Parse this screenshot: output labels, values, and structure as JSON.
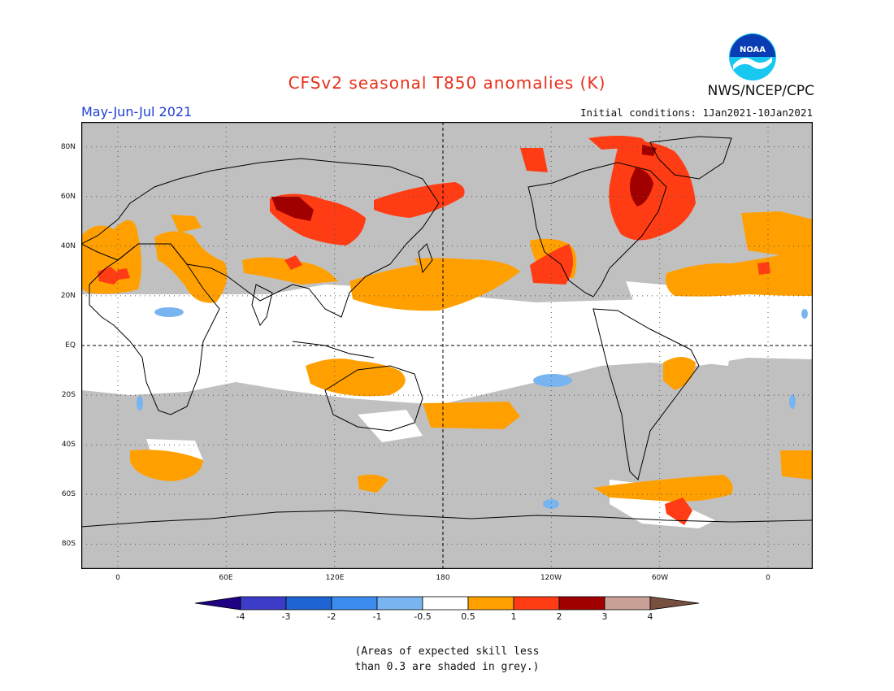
{
  "header": {
    "title": "CFSv2 seasonal T850 anomalies (K)",
    "period": "May-Jun-Jul 2021",
    "initial_conditions": "Initial conditions: 1Jan2021-10Jan2021",
    "agency": "NWS/NCEP/CPC",
    "logo_text": "NOAA"
  },
  "map": {
    "lat_labels": [
      "80N",
      "60N",
      "40N",
      "20N",
      "EQ",
      "20S",
      "40S",
      "60S",
      "80S"
    ],
    "lon_labels": [
      "0",
      "60E",
      "120E",
      "180",
      "120W",
      "60W",
      "0"
    ]
  },
  "colors": {
    "skill_grey": "#c0c0c0",
    "neutral": "#ffffff",
    "anom_05_1": "#ffa000",
    "anom_1_2": "#ff3c14",
    "anom_2_3": "#a00000",
    "neg_05_1": "#78b4f0",
    "coast": "#000000"
  },
  "colorbar": {
    "labels": [
      "-4",
      "-3",
      "-2",
      "-1",
      "-0.5",
      "0.5",
      "1",
      "2",
      "3",
      "4"
    ],
    "colors": [
      "#1e0082",
      "#3c3cc8",
      "#1e64d2",
      "#3c8cf0",
      "#78b4f0",
      "#ffffff",
      "#ffa000",
      "#ff3c14",
      "#a00000",
      "#c8a096",
      "#785040"
    ]
  },
  "note": {
    "line1": "(Areas of expected skill less",
    "line2": "than 0.3 are shaded in grey.)"
  }
}
